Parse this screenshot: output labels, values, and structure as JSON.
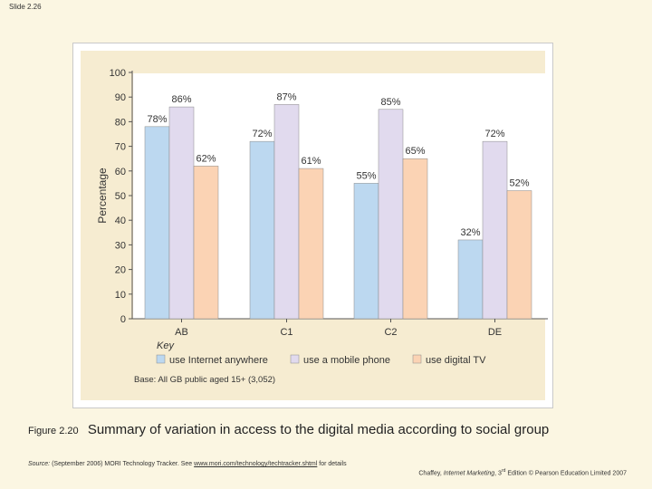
{
  "slide_number": "Slide 2.26",
  "caption": {
    "figure_label": "Figure 2.20",
    "text": "Summary of variation in access to the digital media according to social group"
  },
  "source": {
    "label": "Source:",
    "text_before": " (September 2006) MORI Technology Tracker. See ",
    "link": "www.mori.com/technology/techtracker.shtml",
    "text_after": " for details"
  },
  "credit": {
    "author": "Chaffey, ",
    "book": "Internet Marketing",
    "edition_num": ", 3",
    "edition_sup": "rd",
    "rest": " Edition © Pearson Education Limited 2007"
  },
  "colors": {
    "internet": "#bcd8f0",
    "mobile": "#e1daee",
    "tv": "#fbd3b4",
    "axis": "#555555",
    "text": "#333333"
  },
  "chart_data": {
    "type": "bar",
    "title": "",
    "xlabel": "",
    "ylabel": "Percentage",
    "ylim": [
      0,
      100
    ],
    "yticks": [
      0,
      10,
      20,
      30,
      40,
      50,
      60,
      70,
      80,
      90,
      100
    ],
    "categories": [
      "AB",
      "C1",
      "C2",
      "DE"
    ],
    "series": [
      {
        "name": "use Internet anywhere",
        "color_key": "internet",
        "values": [
          78,
          72,
          55,
          32
        ],
        "labels": [
          "78%",
          "72%",
          "55%",
          "32%"
        ]
      },
      {
        "name": "use a mobile phone",
        "color_key": "mobile",
        "values": [
          86,
          87,
          85,
          72
        ],
        "labels": [
          "86%",
          "87%",
          "85%",
          "72%"
        ]
      },
      {
        "name": "use digital TV",
        "color_key": "tv",
        "values": [
          62,
          61,
          65,
          52
        ],
        "labels": [
          "62%",
          "61%",
          "65%",
          "52%"
        ]
      }
    ],
    "legend_title": "Key",
    "legend_position": "bottom",
    "base_note": "Base: All GB public aged 15+ (3,052)"
  }
}
